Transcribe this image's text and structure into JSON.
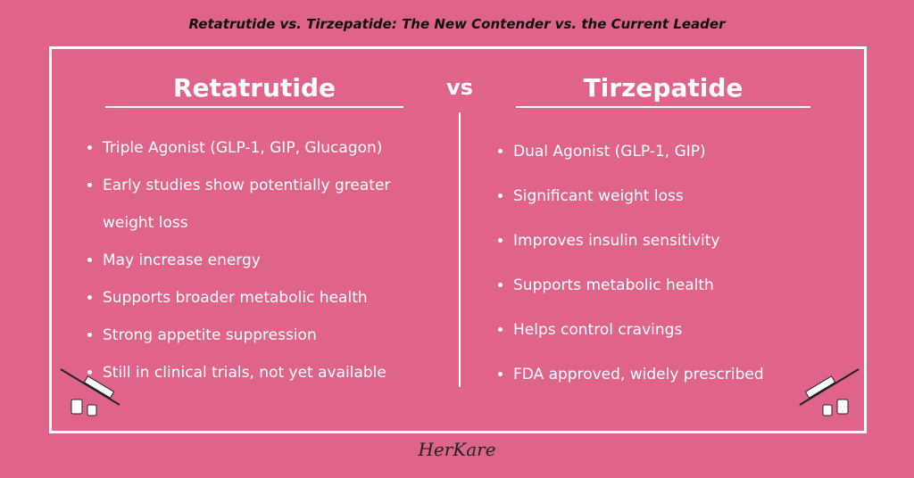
{
  "header": {
    "title": "Retatrutide vs. Tirzepatide: The New Contender vs. the Current Leader"
  },
  "left": {
    "heading": "Retatrutide",
    "items": [
      "Triple Agonist (GLP-1, GIP, Glucagon)",
      "Early studies show potentially greater weight loss",
      "May increase energy",
      "Supports broader metabolic health",
      "Strong appetite suppression",
      "Still in clinical trials, not yet available"
    ]
  },
  "divider": "vs",
  "right": {
    "heading": "Tirzepatide",
    "items": [
      "Dual Agonist (GLP-1, GIP)",
      "Significant weight loss",
      "Improves insulin sensitivity",
      "Supports metabolic health",
      "Helps control cravings",
      "FDA approved, widely prescribed"
    ]
  },
  "logo": "HerKare"
}
